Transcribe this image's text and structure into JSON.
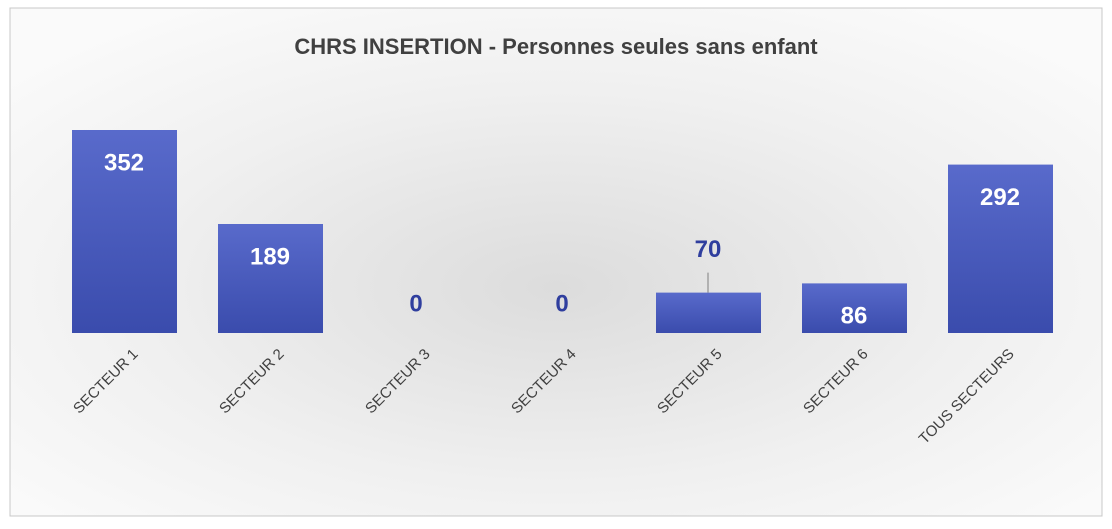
{
  "chart_data": {
    "type": "bar",
    "title": "CHRS INSERTION - Personnes seules sans enfant",
    "categories": [
      "SECTEUR 1",
      "SECTEUR 2",
      "SECTEUR 3",
      "SECTEUR 4",
      "SECTEUR 5",
      "SECTEUR 6",
      "TOUS SECTEURS"
    ],
    "values": [
      352,
      189,
      0,
      0,
      70,
      86,
      292
    ],
    "color": "#4256c4"
  }
}
